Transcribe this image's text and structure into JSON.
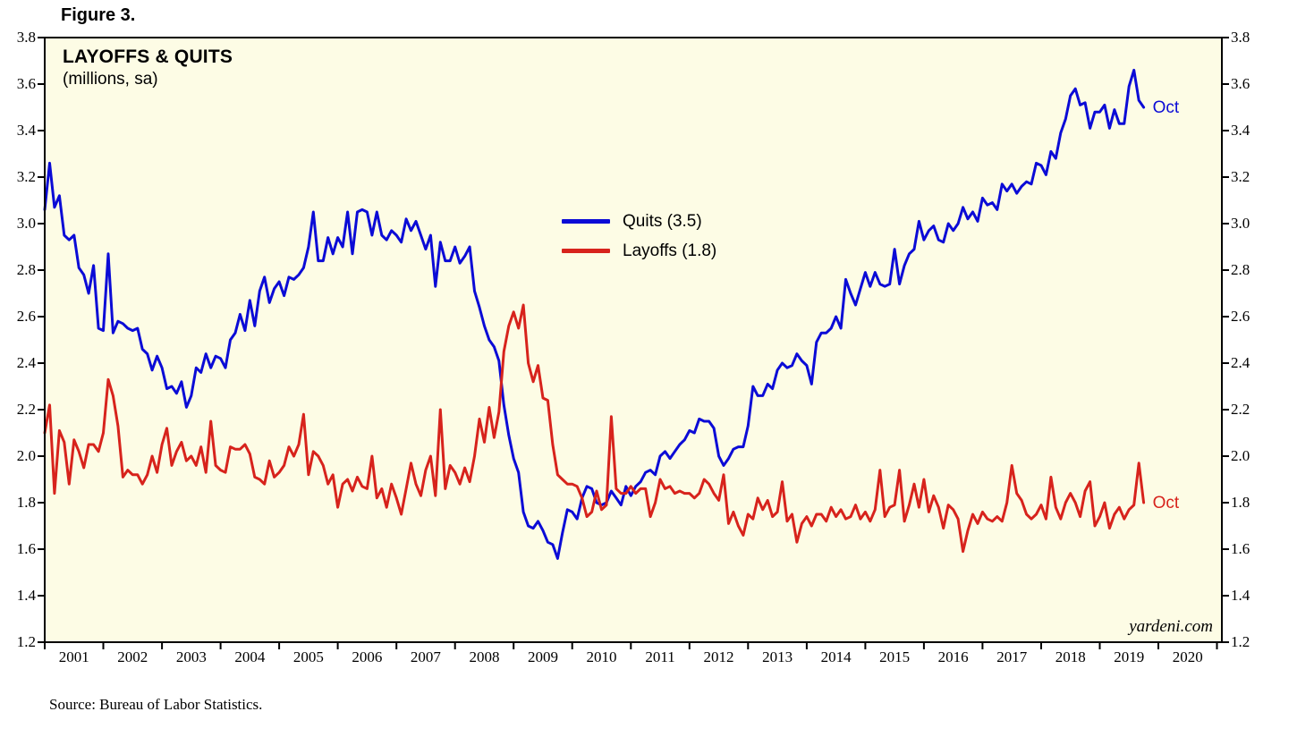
{
  "figure_label": "Figure 3.",
  "chart": {
    "title": "LAYOFFS & QUITS",
    "subtitle": "(millions, sa)",
    "watermark": "yardeni.com",
    "source": "Source: Bureau of Labor Statistics.",
    "legend": [
      {
        "label": "Quits (3.5)",
        "color": "#0b0bd6"
      },
      {
        "label": "Layoffs (1.8)",
        "color": "#d7231c"
      }
    ]
  },
  "chart_data": {
    "type": "line",
    "title": "LAYOFFS & QUITS (millions, sa)",
    "x_start_label": "Jan 2001",
    "x_end_label": "Oct 2019",
    "x_unit": "month",
    "x_months_domain": [
      0,
      241
    ],
    "ylim": [
      1.2,
      3.8
    ],
    "ytick_step": 0.2,
    "yticks": [
      1.2,
      1.4,
      1.6,
      1.8,
      2.0,
      2.2,
      2.4,
      2.6,
      2.8,
      3.0,
      3.2,
      3.4,
      3.6,
      3.8
    ],
    "xticklabels": [
      "2001",
      "2002",
      "2003",
      "2004",
      "2005",
      "2006",
      "2007",
      "2008",
      "2009",
      "2010",
      "2011",
      "2012",
      "2013",
      "2014",
      "2015",
      "2016",
      "2017",
      "2018",
      "2019",
      "2020"
    ],
    "plot_background": "#FDFCE5",
    "axis_color": "#000000",
    "legend_position": "upper middle",
    "grid": false,
    "series": [
      {
        "name": "Quits",
        "color": "#0b0bd6",
        "end_label": "Oct",
        "latest_value": 3.5,
        "values": [
          3.06,
          3.26,
          3.07,
          3.12,
          2.95,
          2.93,
          2.95,
          2.81,
          2.78,
          2.7,
          2.82,
          2.55,
          2.54,
          2.87,
          2.53,
          2.58,
          2.57,
          2.55,
          2.54,
          2.55,
          2.46,
          2.44,
          2.37,
          2.43,
          2.38,
          2.29,
          2.3,
          2.27,
          2.32,
          2.21,
          2.26,
          2.38,
          2.36,
          2.44,
          2.38,
          2.43,
          2.42,
          2.38,
          2.5,
          2.53,
          2.61,
          2.54,
          2.67,
          2.56,
          2.71,
          2.77,
          2.66,
          2.72,
          2.75,
          2.69,
          2.77,
          2.76,
          2.78,
          2.81,
          2.9,
          3.05,
          2.84,
          2.84,
          2.94,
          2.87,
          2.94,
          2.9,
          3.05,
          2.87,
          3.05,
          3.06,
          3.05,
          2.95,
          3.05,
          2.95,
          2.93,
          2.97,
          2.95,
          2.92,
          3.02,
          2.97,
          3.01,
          2.95,
          2.89,
          2.95,
          2.73,
          2.92,
          2.84,
          2.84,
          2.9,
          2.83,
          2.86,
          2.9,
          2.71,
          2.64,
          2.56,
          2.5,
          2.47,
          2.41,
          2.22,
          2.09,
          1.99,
          1.93,
          1.76,
          1.7,
          1.69,
          1.72,
          1.68,
          1.63,
          1.62,
          1.56,
          1.67,
          1.77,
          1.76,
          1.73,
          1.82,
          1.87,
          1.86,
          1.8,
          1.79,
          1.8,
          1.85,
          1.82,
          1.79,
          1.87,
          1.83,
          1.87,
          1.89,
          1.93,
          1.94,
          1.92,
          2.0,
          2.02,
          1.99,
          2.02,
          2.05,
          2.07,
          2.11,
          2.1,
          2.16,
          2.15,
          2.15,
          2.12,
          2.0,
          1.96,
          1.99,
          2.03,
          2.04,
          2.04,
          2.13,
          2.3,
          2.26,
          2.26,
          2.31,
          2.29,
          2.37,
          2.4,
          2.38,
          2.39,
          2.44,
          2.41,
          2.39,
          2.31,
          2.49,
          2.53,
          2.53,
          2.55,
          2.6,
          2.55,
          2.76,
          2.7,
          2.65,
          2.72,
          2.79,
          2.73,
          2.79,
          2.74,
          2.73,
          2.74,
          2.89,
          2.74,
          2.82,
          2.87,
          2.89,
          3.01,
          2.93,
          2.97,
          2.99,
          2.93,
          2.92,
          3.0,
          2.97,
          3.0,
          3.07,
          3.02,
          3.05,
          3.01,
          3.11,
          3.08,
          3.09,
          3.06,
          3.17,
          3.14,
          3.17,
          3.13,
          3.16,
          3.18,
          3.17,
          3.26,
          3.25,
          3.21,
          3.31,
          3.28,
          3.39,
          3.45,
          3.55,
          3.58,
          3.51,
          3.52,
          3.41,
          3.48,
          3.48,
          3.51,
          3.41,
          3.49,
          3.43,
          3.43,
          3.59,
          3.66,
          3.53,
          3.5
        ]
      },
      {
        "name": "Layoffs",
        "color": "#d7231c",
        "end_label": "Oct",
        "latest_value": 1.8,
        "values": [
          2.1,
          2.22,
          1.84,
          2.11,
          2.06,
          1.88,
          2.07,
          2.02,
          1.95,
          2.05,
          2.05,
          2.02,
          2.1,
          2.33,
          2.26,
          2.13,
          1.91,
          1.94,
          1.92,
          1.92,
          1.88,
          1.92,
          2.0,
          1.93,
          2.05,
          2.12,
          1.96,
          2.02,
          2.06,
          1.98,
          2.0,
          1.96,
          2.04,
          1.93,
          2.15,
          1.96,
          1.94,
          1.93,
          2.04,
          2.03,
          2.03,
          2.05,
          2.01,
          1.91,
          1.9,
          1.88,
          1.98,
          1.91,
          1.93,
          1.96,
          2.04,
          2.0,
          2.05,
          2.18,
          1.92,
          2.02,
          2.0,
          1.96,
          1.88,
          1.92,
          1.78,
          1.88,
          1.9,
          1.85,
          1.91,
          1.87,
          1.86,
          2.0,
          1.82,
          1.86,
          1.78,
          1.88,
          1.82,
          1.75,
          1.86,
          1.97,
          1.88,
          1.83,
          1.94,
          2.0,
          1.83,
          2.2,
          1.86,
          1.96,
          1.93,
          1.88,
          1.95,
          1.89,
          2.0,
          2.16,
          2.06,
          2.21,
          2.08,
          2.19,
          2.45,
          2.56,
          2.62,
          2.55,
          2.65,
          2.4,
          2.32,
          2.39,
          2.25,
          2.24,
          2.05,
          1.92,
          1.9,
          1.88,
          1.88,
          1.87,
          1.82,
          1.74,
          1.76,
          1.85,
          1.77,
          1.79,
          2.17,
          1.86,
          1.84,
          1.84,
          1.87,
          1.84,
          1.86,
          1.86,
          1.74,
          1.8,
          1.9,
          1.86,
          1.87,
          1.84,
          1.85,
          1.84,
          1.84,
          1.82,
          1.84,
          1.9,
          1.88,
          1.84,
          1.81,
          1.92,
          1.71,
          1.76,
          1.7,
          1.66,
          1.75,
          1.73,
          1.82,
          1.77,
          1.81,
          1.74,
          1.76,
          1.89,
          1.72,
          1.75,
          1.63,
          1.71,
          1.74,
          1.7,
          1.75,
          1.75,
          1.72,
          1.78,
          1.74,
          1.77,
          1.73,
          1.74,
          1.79,
          1.73,
          1.76,
          1.72,
          1.77,
          1.94,
          1.74,
          1.78,
          1.79,
          1.94,
          1.72,
          1.79,
          1.88,
          1.78,
          1.9,
          1.76,
          1.83,
          1.78,
          1.69,
          1.79,
          1.77,
          1.73,
          1.59,
          1.68,
          1.75,
          1.71,
          1.76,
          1.73,
          1.72,
          1.74,
          1.72,
          1.8,
          1.96,
          1.84,
          1.81,
          1.75,
          1.73,
          1.75,
          1.79,
          1.73,
          1.91,
          1.78,
          1.73,
          1.8,
          1.84,
          1.8,
          1.74,
          1.85,
          1.89,
          1.7,
          1.74,
          1.8,
          1.69,
          1.75,
          1.78,
          1.73,
          1.77,
          1.79,
          1.97,
          1.8
        ]
      }
    ]
  }
}
